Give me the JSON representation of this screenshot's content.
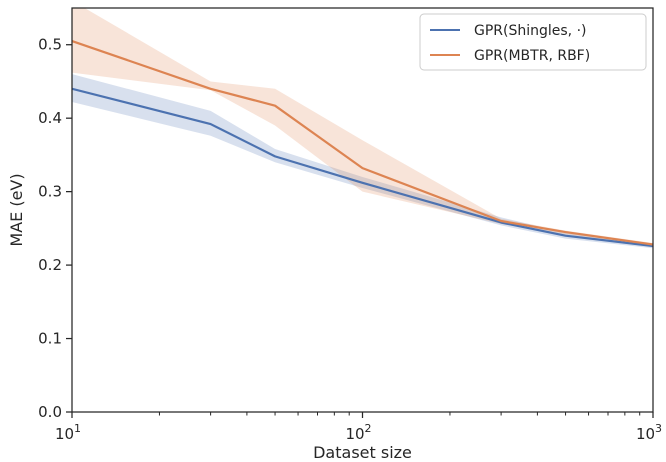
{
  "chart_data": {
    "type": "line",
    "xscale": "log",
    "xlabel": "Dataset size",
    "ylabel": "MAE (eV)",
    "xlim": [
      10,
      1000
    ],
    "ylim": [
      0.0,
      0.55
    ],
    "xticks_major": [
      10,
      100,
      1000
    ],
    "xtick_base": "10",
    "xtick_exps": [
      "1",
      "2",
      "3"
    ],
    "yticks": [
      0.0,
      0.1,
      0.2,
      0.3,
      0.4,
      0.5
    ],
    "ytick_labels": [
      "0.0",
      "0.1",
      "0.2",
      "0.3",
      "0.4",
      "0.5"
    ],
    "grid": false,
    "legend_position": "top-right",
    "series": [
      {
        "name": "GPR(Shingles, ·)",
        "color": "#4c72b0",
        "x": [
          10,
          30,
          50,
          100,
          300,
          500,
          1000
        ],
        "y": [
          0.44,
          0.392,
          0.348,
          0.312,
          0.258,
          0.24,
          0.226
        ],
        "y_lower": [
          0.422,
          0.376,
          0.34,
          0.305,
          0.254,
          0.236,
          0.223
        ],
        "y_upper": [
          0.46,
          0.41,
          0.358,
          0.32,
          0.265,
          0.244,
          0.229
        ]
      },
      {
        "name": "GPR(MBTR, RBF)",
        "color": "#dd8452",
        "x": [
          10,
          30,
          50,
          100,
          300,
          500,
          1000
        ],
        "y": [
          0.505,
          0.44,
          0.417,
          0.332,
          0.26,
          0.245,
          0.228
        ],
        "y_lower": [
          0.462,
          0.438,
          0.39,
          0.3,
          0.256,
          0.242,
          0.226
        ],
        "y_upper": [
          0.56,
          0.45,
          0.44,
          0.37,
          0.263,
          0.247,
          0.23
        ]
      }
    ]
  }
}
